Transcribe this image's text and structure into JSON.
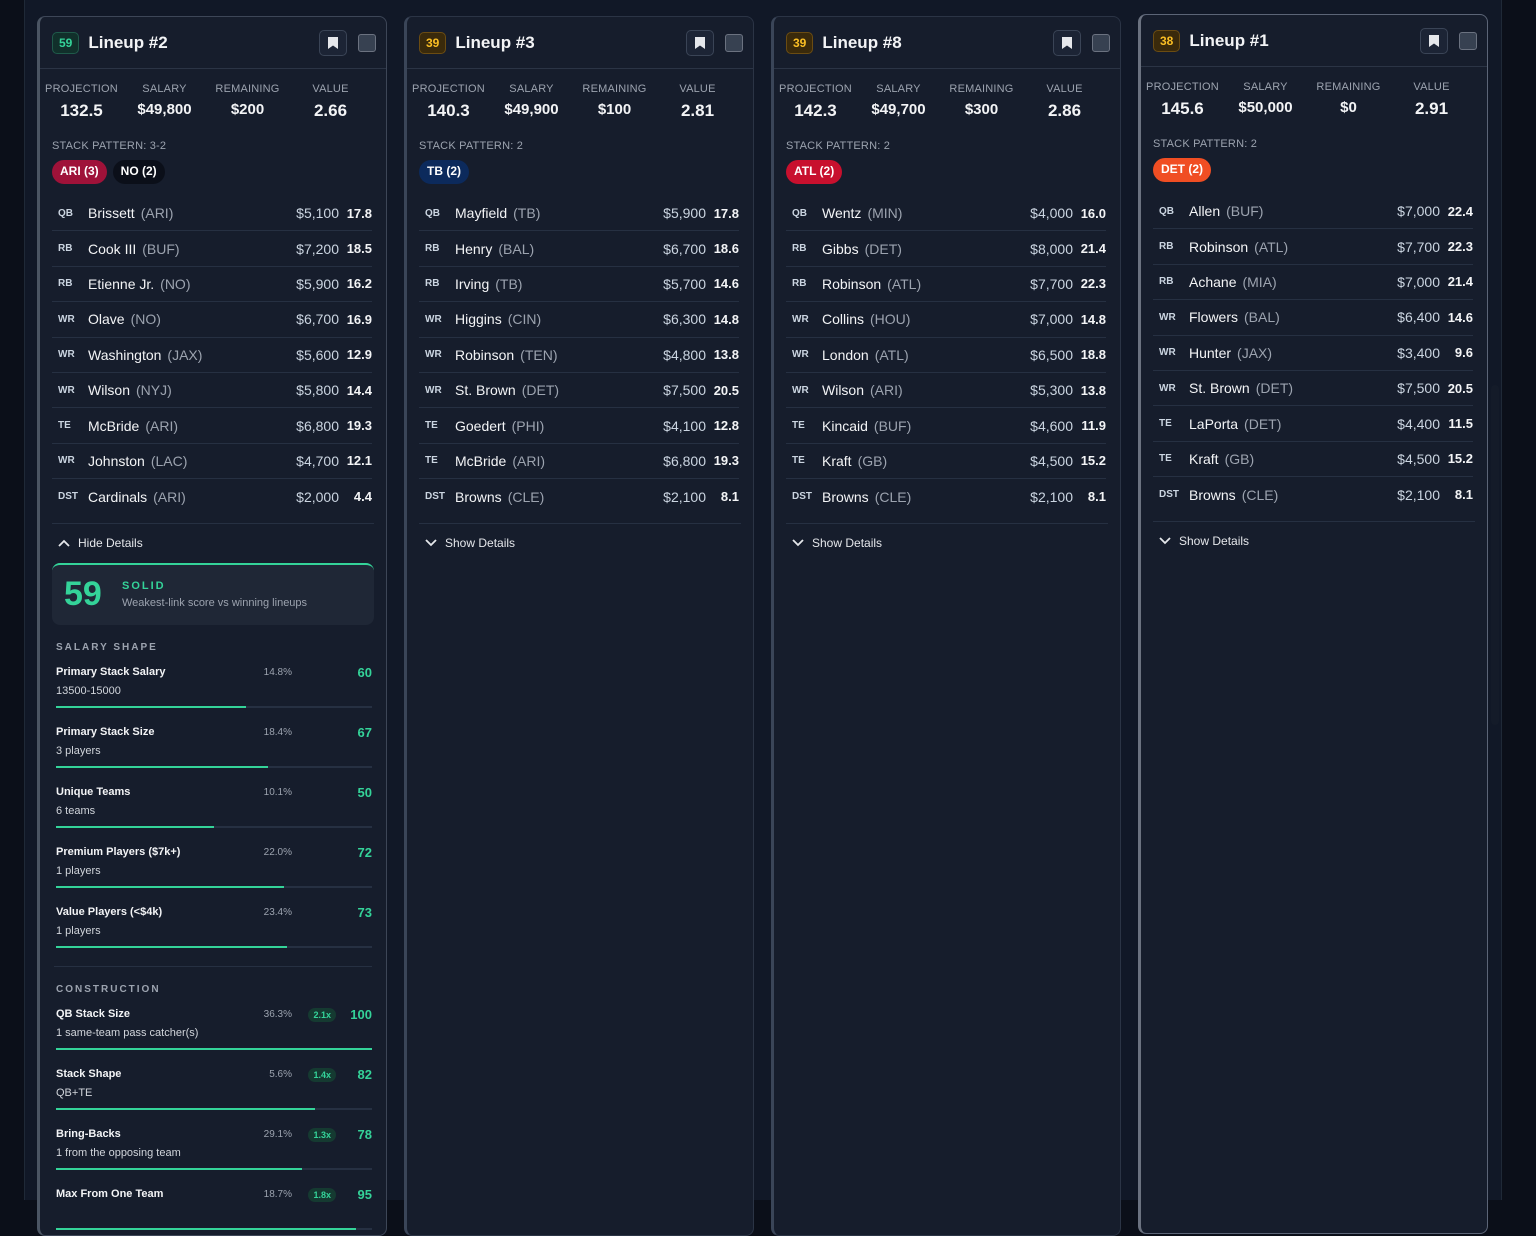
{
  "colors": {
    "accent": "#34d399",
    "ari": "#9f1239",
    "no": "#0b0f19",
    "tb": "#0c2a5c",
    "atl": "#c8102e",
    "det": "#f04e23"
  },
  "icons": {
    "bookmark": "bookmark-icon",
    "expand": "chevron-down-icon",
    "collapse": "chevron-up-icon"
  },
  "lineups": [
    {
      "score": "59",
      "title": "Lineup #2",
      "stats": {
        "projection": "132.5",
        "salary": "$49,800",
        "remaining": "$200",
        "value": "2.66"
      },
      "stack_pattern": "STACK PATTERN: 3-2",
      "teams": [
        {
          "label": "ARI (3)",
          "color": "#9f1239"
        },
        {
          "label": "NO (2)",
          "color": "#0b0f19"
        }
      ],
      "players": [
        {
          "pos": "QB",
          "name": "Brissett",
          "team": "(ARI)",
          "salary": "$5,100",
          "pts": "17.8"
        },
        {
          "pos": "RB",
          "name": "Cook III",
          "team": "(BUF)",
          "salary": "$7,200",
          "pts": "18.5"
        },
        {
          "pos": "RB",
          "name": "Etienne Jr.",
          "team": "(NO)",
          "salary": "$5,900",
          "pts": "16.2"
        },
        {
          "pos": "WR",
          "name": "Olave",
          "team": "(NO)",
          "salary": "$6,700",
          "pts": "16.9"
        },
        {
          "pos": "WR",
          "name": "Washington",
          "team": "(JAX)",
          "salary": "$5,600",
          "pts": "12.9"
        },
        {
          "pos": "WR",
          "name": "Wilson",
          "team": "(NYJ)",
          "salary": "$5,800",
          "pts": "14.4"
        },
        {
          "pos": "TE",
          "name": "McBride",
          "team": "(ARI)",
          "salary": "$6,800",
          "pts": "19.3"
        },
        {
          "pos": "WR",
          "name": "Johnston",
          "team": "(LAC)",
          "salary": "$4,700",
          "pts": "12.1"
        },
        {
          "pos": "DST",
          "name": "Cardinals",
          "team": "(ARI)",
          "salary": "$2,000",
          "pts": "4.4"
        }
      ],
      "toggle_label": "Hide Details",
      "details": {
        "big_score": "59",
        "grade": "SOLID",
        "grade_desc": "Weakest-link score vs winning lineups",
        "salary_shape_title": "SALARY SHAPE",
        "salary_shape": [
          {
            "name": "Primary Stack Salary",
            "detail": "13500-15000",
            "pct": "14.8%",
            "score": "60",
            "fill": 0.6
          },
          {
            "name": "Primary Stack Size",
            "detail": "3 players",
            "pct": "18.4%",
            "score": "67",
            "fill": 0.67
          },
          {
            "name": "Unique Teams",
            "detail": "6 teams",
            "pct": "10.1%",
            "score": "50",
            "fill": 0.5
          },
          {
            "name": "Premium Players ($7k+)",
            "detail": "1 players",
            "pct": "22.0%",
            "score": "72",
            "fill": 0.72
          },
          {
            "name": "Value Players (<$4k)",
            "detail": "1 players",
            "pct": "23.4%",
            "score": "73",
            "fill": 0.73
          }
        ],
        "construction_title": "CONSTRUCTION",
        "construction": [
          {
            "name": "QB Stack Size",
            "detail": "1 same-team pass catcher(s)",
            "pct": "36.3%",
            "mult": "2.1x",
            "score": "100",
            "fill": 1.0
          },
          {
            "name": "Stack Shape",
            "detail": "QB+TE",
            "pct": "5.6%",
            "mult": "1.4x",
            "score": "82",
            "fill": 0.82
          },
          {
            "name": "Bring-Backs",
            "detail": "1 from the opposing team",
            "pct": "29.1%",
            "mult": "1.3x",
            "score": "78",
            "fill": 0.78
          },
          {
            "name": "Max From One Team",
            "detail": "",
            "pct": "18.7%",
            "mult": "1.8x",
            "score": "95",
            "fill": 0.95
          }
        ]
      }
    },
    {
      "score": "39",
      "title": "Lineup #3",
      "stats": {
        "projection": "140.3",
        "salary": "$49,900",
        "remaining": "$100",
        "value": "2.81"
      },
      "stack_pattern": "STACK PATTERN: 2",
      "teams": [
        {
          "label": "TB (2)",
          "color": "#0c2a5c"
        }
      ],
      "players": [
        {
          "pos": "QB",
          "name": "Mayfield",
          "team": "(TB)",
          "salary": "$5,900",
          "pts": "17.8"
        },
        {
          "pos": "RB",
          "name": "Henry",
          "team": "(BAL)",
          "salary": "$6,700",
          "pts": "18.6"
        },
        {
          "pos": "RB",
          "name": "Irving",
          "team": "(TB)",
          "salary": "$5,700",
          "pts": "14.6"
        },
        {
          "pos": "WR",
          "name": "Higgins",
          "team": "(CIN)",
          "salary": "$6,300",
          "pts": "14.8"
        },
        {
          "pos": "WR",
          "name": "Robinson",
          "team": "(TEN)",
          "salary": "$4,800",
          "pts": "13.8"
        },
        {
          "pos": "WR",
          "name": "St. Brown",
          "team": "(DET)",
          "salary": "$7,500",
          "pts": "20.5"
        },
        {
          "pos": "TE",
          "name": "Goedert",
          "team": "(PHI)",
          "salary": "$4,100",
          "pts": "12.8"
        },
        {
          "pos": "TE",
          "name": "McBride",
          "team": "(ARI)",
          "salary": "$6,800",
          "pts": "19.3"
        },
        {
          "pos": "DST",
          "name": "Browns",
          "team": "(CLE)",
          "salary": "$2,100",
          "pts": "8.1"
        }
      ],
      "toggle_label": "Show Details"
    },
    {
      "score": "39",
      "title": "Lineup #8",
      "stats": {
        "projection": "142.3",
        "salary": "$49,700",
        "remaining": "$300",
        "value": "2.86"
      },
      "stack_pattern": "STACK PATTERN: 2",
      "teams": [
        {
          "label": "ATL (2)",
          "color": "#c8102e"
        }
      ],
      "players": [
        {
          "pos": "QB",
          "name": "Wentz",
          "team": "(MIN)",
          "salary": "$4,000",
          "pts": "16.0"
        },
        {
          "pos": "RB",
          "name": "Gibbs",
          "team": "(DET)",
          "salary": "$8,000",
          "pts": "21.4"
        },
        {
          "pos": "RB",
          "name": "Robinson",
          "team": "(ATL)",
          "salary": "$7,700",
          "pts": "22.3"
        },
        {
          "pos": "WR",
          "name": "Collins",
          "team": "(HOU)",
          "salary": "$7,000",
          "pts": "14.8"
        },
        {
          "pos": "WR",
          "name": "London",
          "team": "(ATL)",
          "salary": "$6,500",
          "pts": "18.8"
        },
        {
          "pos": "WR",
          "name": "Wilson",
          "team": "(ARI)",
          "salary": "$5,300",
          "pts": "13.8"
        },
        {
          "pos": "TE",
          "name": "Kincaid",
          "team": "(BUF)",
          "salary": "$4,600",
          "pts": "11.9"
        },
        {
          "pos": "TE",
          "name": "Kraft",
          "team": "(GB)",
          "salary": "$4,500",
          "pts": "15.2"
        },
        {
          "pos": "DST",
          "name": "Browns",
          "team": "(CLE)",
          "salary": "$2,100",
          "pts": "8.1"
        }
      ],
      "toggle_label": "Show Details"
    },
    {
      "score": "38",
      "title": "Lineup #1",
      "stats": {
        "projection": "145.6",
        "salary": "$50,000",
        "remaining": "$0",
        "value": "2.91"
      },
      "stack_pattern": "STACK PATTERN: 2",
      "teams": [
        {
          "label": "DET (2)",
          "color": "#f04e23"
        }
      ],
      "players": [
        {
          "pos": "QB",
          "name": "Allen",
          "team": "(BUF)",
          "salary": "$7,000",
          "pts": "22.4"
        },
        {
          "pos": "RB",
          "name": "Robinson",
          "team": "(ATL)",
          "salary": "$7,700",
          "pts": "22.3"
        },
        {
          "pos": "RB",
          "name": "Achane",
          "team": "(MIA)",
          "salary": "$7,000",
          "pts": "21.4"
        },
        {
          "pos": "WR",
          "name": "Flowers",
          "team": "(BAL)",
          "salary": "$6,400",
          "pts": "14.6"
        },
        {
          "pos": "WR",
          "name": "Hunter",
          "team": "(JAX)",
          "salary": "$3,400",
          "pts": "9.6"
        },
        {
          "pos": "WR",
          "name": "St. Brown",
          "team": "(DET)",
          "salary": "$7,500",
          "pts": "20.5"
        },
        {
          "pos": "TE",
          "name": "LaPorta",
          "team": "(DET)",
          "salary": "$4,400",
          "pts": "11.5"
        },
        {
          "pos": "TE",
          "name": "Kraft",
          "team": "(GB)",
          "salary": "$4,500",
          "pts": "15.2"
        },
        {
          "pos": "DST",
          "name": "Browns",
          "team": "(CLE)",
          "salary": "$2,100",
          "pts": "8.1"
        }
      ],
      "toggle_label": "Show Details"
    }
  ],
  "stat_labels": {
    "projection": "PROJECTION",
    "salary": "SALARY",
    "remaining": "REMAINING",
    "value": "VALUE"
  }
}
